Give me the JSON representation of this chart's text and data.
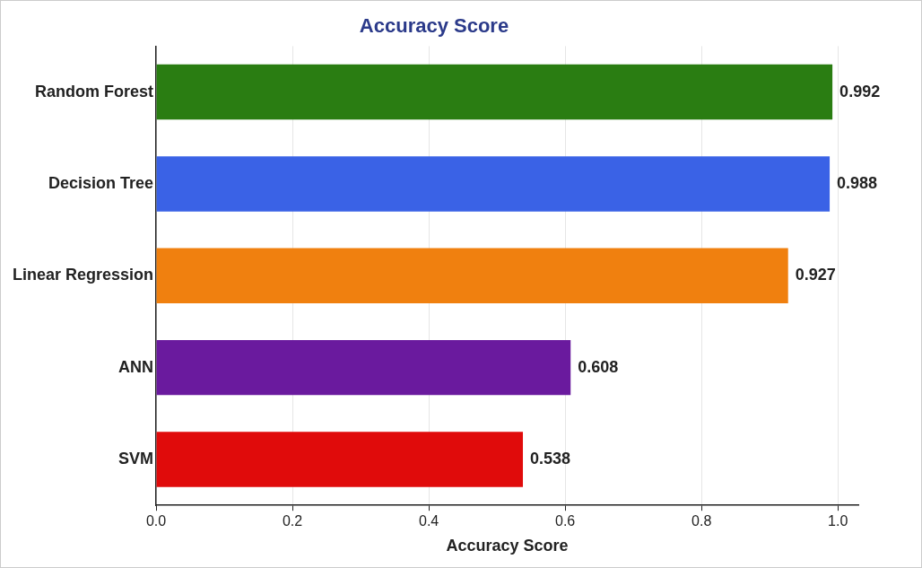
{
  "chart_data": {
    "type": "bar",
    "orientation": "horizontal",
    "title": "Accuracy Score",
    "xlabel": "Accuracy Score",
    "categories": [
      "Random Forest",
      "Decision Tree",
      "Linear Regression",
      "ANN",
      "SVM"
    ],
    "values": [
      0.992,
      0.988,
      0.927,
      0.608,
      0.538
    ],
    "colors": [
      "#2a7d12",
      "#3a62e6",
      "#f0800f",
      "#6a1a9e",
      "#e00b0b"
    ],
    "xlim": [
      0,
      1.03
    ],
    "xticks": [
      {
        "value": 0,
        "label": "0.0"
      },
      {
        "value": 0.2,
        "label": "0.2"
      },
      {
        "value": 0.4,
        "label": "0.4"
      },
      {
        "value": 0.6,
        "label": "0.6"
      },
      {
        "value": 0.8,
        "label": "0.8"
      },
      {
        "value": 1,
        "label": "1.0"
      }
    ],
    "grid": "x",
    "data_labels": true
  }
}
